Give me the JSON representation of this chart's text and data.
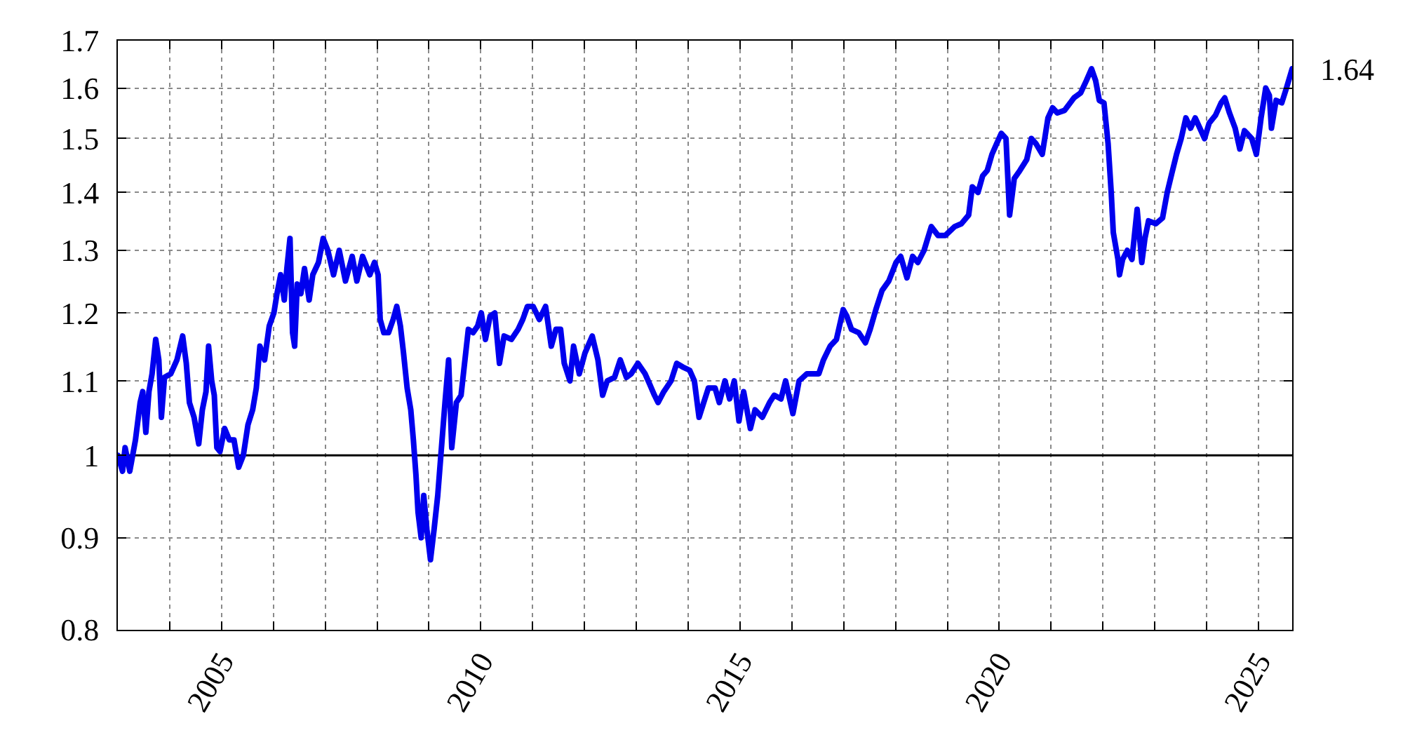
{
  "chart_data": {
    "type": "line",
    "color": "#0000ee",
    "log": "y",
    "grid": true,
    "xlim": [
      2003,
      2025.65
    ],
    "ylim": [
      0.8,
      1.7
    ],
    "xticks": [
      {
        "value": 2004,
        "label": null
      },
      2005,
      {
        "value": 2006,
        "label": null
      },
      {
        "value": 2007,
        "label": null
      },
      {
        "value": 2008,
        "label": null
      },
      {
        "value": 2009,
        "label": null
      },
      2010,
      {
        "value": 2011,
        "label": null
      },
      {
        "value": 2012,
        "label": null
      },
      {
        "value": 2013,
        "label": null
      },
      {
        "value": 2014,
        "label": null
      },
      2015,
      {
        "value": 2016,
        "label": null
      },
      {
        "value": 2017,
        "label": null
      },
      {
        "value": 2018,
        "label": null
      },
      {
        "value": 2019,
        "label": null
      },
      2020,
      {
        "value": 2021,
        "label": null
      },
      {
        "value": 2022,
        "label": null
      },
      {
        "value": 2023,
        "label": null
      },
      {
        "value": 2024,
        "label": null
      },
      2025
    ],
    "yticks": [
      0.8,
      0.9,
      1,
      1.1,
      1.2,
      1.3,
      1.4,
      1.5,
      1.6,
      1.7
    ],
    "ref_lines": [
      {
        "axis": "y",
        "value": 1,
        "color": "#000000"
      }
    ],
    "annotations": [
      {
        "text": "1.64",
        "x": 2025.65,
        "y": 1.64
      }
    ],
    "x": [
      2003.0,
      2003.09,
      2003.14,
      2003.23,
      2003.34,
      2003.43,
      2003.48,
      2003.54,
      2003.6,
      2003.66,
      2003.73,
      2003.79,
      2003.84,
      2003.9,
      2004.02,
      2004.14,
      2004.25,
      2004.32,
      2004.38,
      2004.47,
      2004.56,
      2004.63,
      2004.7,
      2004.75,
      2004.81,
      2004.86,
      2004.91,
      2004.97,
      2005.06,
      2005.15,
      2005.24,
      2005.33,
      2005.42,
      2005.51,
      2005.6,
      2005.67,
      2005.74,
      2005.83,
      2005.92,
      2006.01,
      2006.07,
      2006.14,
      2006.21,
      2006.26,
      2006.32,
      2006.37,
      2006.41,
      2006.46,
      2006.53,
      2006.6,
      2006.69,
      2006.76,
      2006.87,
      2006.96,
      2007.05,
      2007.16,
      2007.27,
      2007.39,
      2007.52,
      2007.61,
      2007.72,
      2007.86,
      2007.95,
      2008.02,
      2008.06,
      2008.13,
      2008.22,
      2008.31,
      2008.38,
      2008.45,
      2008.51,
      2008.58,
      2008.65,
      2008.7,
      2008.75,
      2008.79,
      2008.85,
      2008.9,
      2008.96,
      2009.03,
      2009.1,
      2009.17,
      2009.23,
      2009.31,
      2009.38,
      2009.44,
      2009.53,
      2009.62,
      2009.68,
      2009.76,
      2009.85,
      2009.94,
      2010.01,
      2010.09,
      2010.18,
      2010.27,
      2010.36,
      2010.45,
      2010.59,
      2010.72,
      2010.81,
      2010.9,
      2011.01,
      2011.13,
      2011.25,
      2011.36,
      2011.45,
      2011.54,
      2011.61,
      2011.72,
      2011.79,
      2011.9,
      2012.01,
      2012.15,
      2012.26,
      2012.35,
      2012.44,
      2012.58,
      2012.69,
      2012.81,
      2012.9,
      2013.03,
      2013.17,
      2013.26,
      2013.35,
      2013.42,
      2013.53,
      2013.67,
      2013.78,
      2013.89,
      2014.03,
      2014.12,
      2014.21,
      2014.3,
      2014.39,
      2014.52,
      2014.6,
      2014.71,
      2014.8,
      2014.89,
      2014.98,
      2015.07,
      2015.2,
      2015.29,
      2015.43,
      2015.57,
      2015.66,
      2015.79,
      2015.88,
      2016.02,
      2016.14,
      2016.29,
      2016.52,
      2016.61,
      2016.74,
      2016.86,
      2016.99,
      2017.06,
      2017.15,
      2017.29,
      2017.42,
      2017.51,
      2017.62,
      2017.74,
      2017.87,
      2018.01,
      2018.1,
      2018.22,
      2018.33,
      2018.43,
      2018.55,
      2018.69,
      2018.82,
      2018.96,
      2019.14,
      2019.27,
      2019.41,
      2019.48,
      2019.59,
      2019.68,
      2019.77,
      2019.86,
      2019.95,
      2020.04,
      2020.13,
      2020.2,
      2020.29,
      2020.4,
      2020.53,
      2020.62,
      2020.71,
      2020.83,
      2020.94,
      2021.03,
      2021.12,
      2021.26,
      2021.44,
      2021.57,
      2021.68,
      2021.78,
      2021.86,
      2021.93,
      2022.02,
      2022.1,
      2022.16,
      2022.2,
      2022.29,
      2022.32,
      2022.38,
      2022.47,
      2022.56,
      2022.66,
      2022.75,
      2022.81,
      2022.88,
      2023.02,
      2023.15,
      2023.24,
      2023.33,
      2023.42,
      2023.51,
      2023.6,
      2023.69,
      2023.78,
      2023.87,
      2023.96,
      2024.05,
      2024.17,
      2024.28,
      2024.35,
      2024.44,
      2024.55,
      2024.64,
      2024.73,
      2024.87,
      2024.96,
      2025.05,
      2025.14,
      2025.21,
      2025.25,
      2025.34,
      2025.45,
      2025.54,
      2025.65
    ],
    "values": [
      1.0,
      0.98,
      1.01,
      0.98,
      1.02,
      1.07,
      1.085,
      1.03,
      1.085,
      1.11,
      1.16,
      1.13,
      1.05,
      1.105,
      1.11,
      1.13,
      1.165,
      1.125,
      1.07,
      1.05,
      1.015,
      1.06,
      1.085,
      1.15,
      1.1,
      1.08,
      1.01,
      1.005,
      1.035,
      1.02,
      1.02,
      0.985,
      1.0,
      1.04,
      1.06,
      1.09,
      1.15,
      1.13,
      1.18,
      1.2,
      1.23,
      1.26,
      1.22,
      1.27,
      1.32,
      1.17,
      1.15,
      1.245,
      1.23,
      1.27,
      1.22,
      1.26,
      1.28,
      1.32,
      1.3,
      1.26,
      1.3,
      1.25,
      1.29,
      1.25,
      1.29,
      1.26,
      1.28,
      1.26,
      1.19,
      1.17,
      1.17,
      1.19,
      1.21,
      1.18,
      1.14,
      1.09,
      1.06,
      1.02,
      0.975,
      0.93,
      0.9,
      0.95,
      0.91,
      0.875,
      0.91,
      0.95,
      1.0,
      1.07,
      1.13,
      1.01,
      1.07,
      1.08,
      1.12,
      1.175,
      1.17,
      1.18,
      1.2,
      1.16,
      1.195,
      1.2,
      1.125,
      1.165,
      1.16,
      1.175,
      1.19,
      1.21,
      1.21,
      1.19,
      1.21,
      1.15,
      1.175,
      1.175,
      1.125,
      1.1,
      1.15,
      1.11,
      1.14,
      1.165,
      1.13,
      1.08,
      1.1,
      1.105,
      1.13,
      1.105,
      1.11,
      1.125,
      1.11,
      1.095,
      1.08,
      1.07,
      1.085,
      1.1,
      1.125,
      1.12,
      1.115,
      1.1,
      1.05,
      1.07,
      1.09,
      1.09,
      1.07,
      1.1,
      1.075,
      1.1,
      1.045,
      1.085,
      1.035,
      1.06,
      1.05,
      1.07,
      1.08,
      1.075,
      1.1,
      1.055,
      1.1,
      1.11,
      1.11,
      1.13,
      1.15,
      1.16,
      1.205,
      1.195,
      1.175,
      1.17,
      1.155,
      1.175,
      1.205,
      1.235,
      1.25,
      1.28,
      1.29,
      1.255,
      1.29,
      1.28,
      1.3,
      1.34,
      1.325,
      1.325,
      1.34,
      1.345,
      1.36,
      1.41,
      1.4,
      1.43,
      1.44,
      1.47,
      1.49,
      1.51,
      1.5,
      1.36,
      1.425,
      1.44,
      1.46,
      1.5,
      1.49,
      1.47,
      1.54,
      1.56,
      1.55,
      1.555,
      1.58,
      1.59,
      1.615,
      1.64,
      1.615,
      1.575,
      1.57,
      1.49,
      1.4,
      1.33,
      1.285,
      1.26,
      1.285,
      1.3,
      1.285,
      1.37,
      1.28,
      1.32,
      1.35,
      1.345,
      1.355,
      1.4,
      1.435,
      1.47,
      1.5,
      1.54,
      1.52,
      1.54,
      1.52,
      1.5,
      1.53,
      1.545,
      1.57,
      1.58,
      1.55,
      1.52,
      1.48,
      1.515,
      1.5,
      1.47,
      1.54,
      1.6,
      1.585,
      1.52,
      1.575,
      1.57,
      1.6,
      1.64
    ]
  }
}
